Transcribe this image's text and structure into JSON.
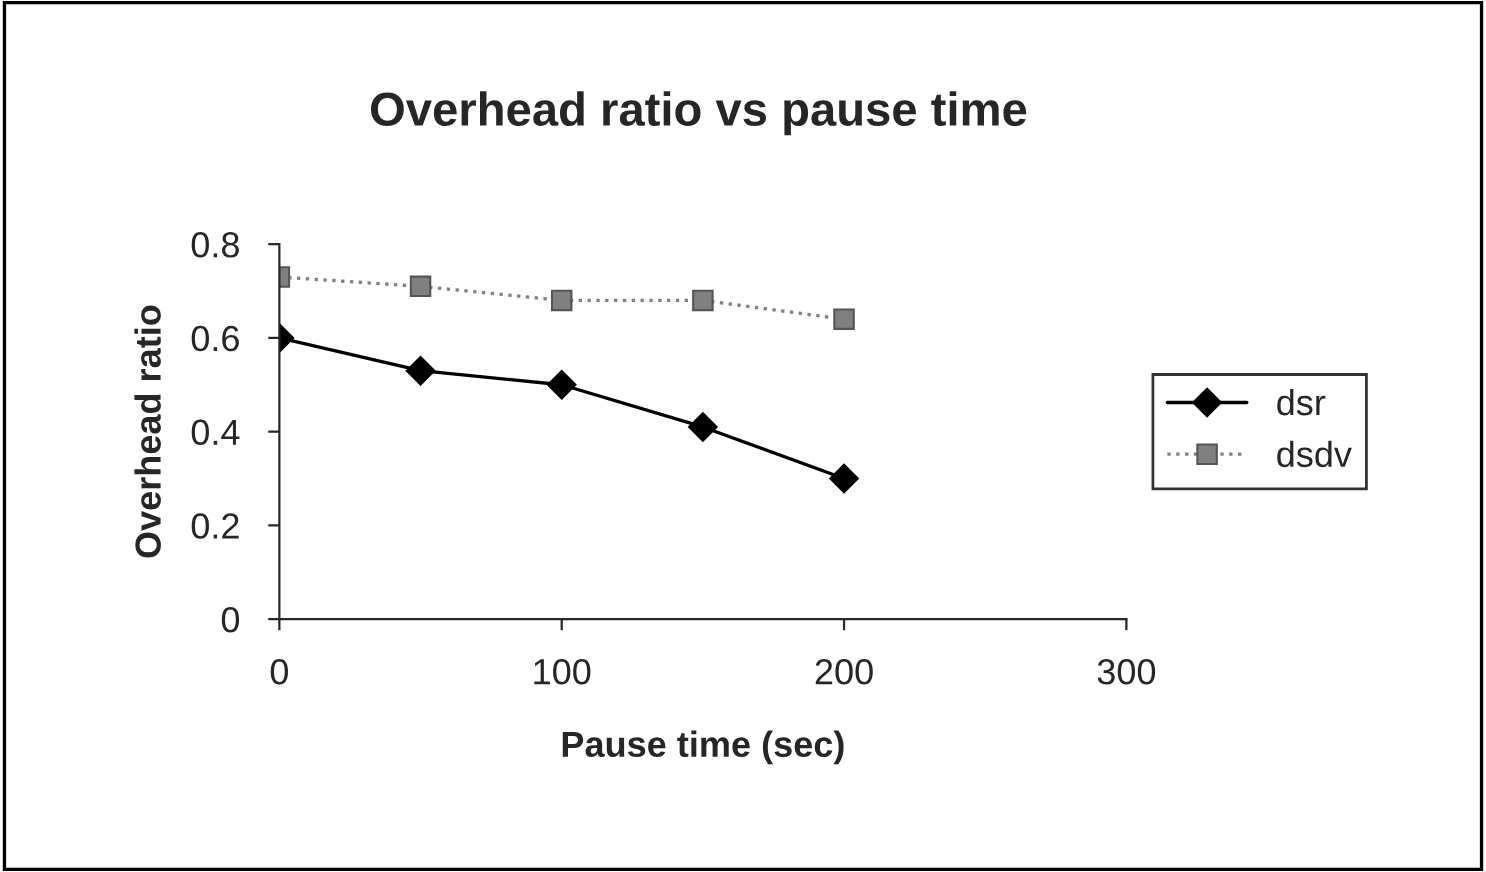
{
  "chart_data": {
    "type": "line",
    "title": "Overhead ratio vs pause time",
    "xlabel": "Pause time (sec)",
    "ylabel": "Overhead ratio",
    "x": [
      0,
      50,
      100,
      150,
      200
    ],
    "series": [
      {
        "name": "dsr",
        "color": "#000000",
        "values": [
          0.6,
          0.53,
          0.5,
          0.41,
          0.3
        ],
        "marker": "diamond",
        "line_style": "solid"
      },
      {
        "name": "dsdv",
        "color": "#808080",
        "values": [
          0.73,
          0.71,
          0.68,
          0.68,
          0.64
        ],
        "marker": "square",
        "line_style": "dotted"
      }
    ],
    "xlim": [
      0,
      300
    ],
    "xticks": [
      0,
      100,
      200,
      300
    ],
    "ylim": [
      0,
      0.8
    ],
    "yticks": [
      0,
      0.2,
      0.4,
      0.6,
      0.8
    ],
    "grid": false,
    "legend": "right"
  }
}
